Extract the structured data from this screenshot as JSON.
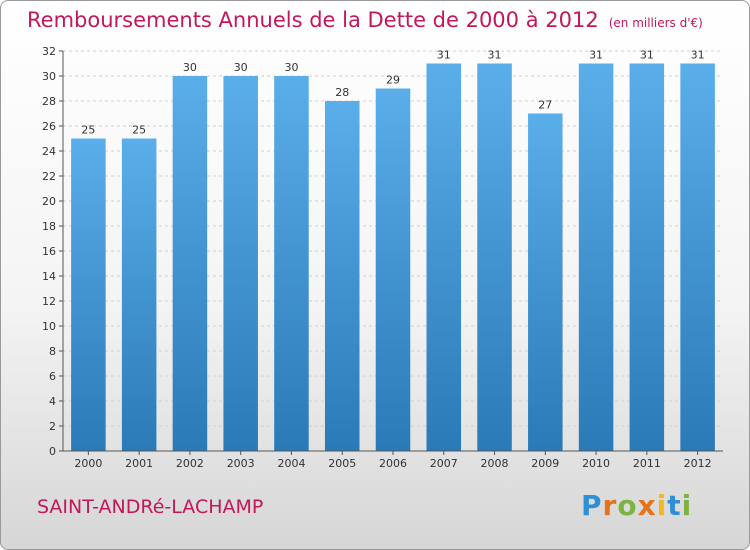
{
  "header": {
    "title": "Remboursements Annuels de la Dette de 2000 à 2012",
    "unit": "(en milliers d'€)"
  },
  "footer": {
    "commune": "SAINT-ANDRé-LACHAMP",
    "logo_letters": [
      "P",
      "r",
      "o",
      "x",
      "i",
      "t",
      "i"
    ]
  },
  "colors": {
    "title": "#c2185b",
    "bar_top": "#5aaee9",
    "bar_bottom": "#2a7ab8",
    "axis": "#555555",
    "grid": "#d0d0d0"
  },
  "chart_data": {
    "type": "bar",
    "categories": [
      "2000",
      "2001",
      "2002",
      "2003",
      "2004",
      "2005",
      "2006",
      "2007",
      "2008",
      "2009",
      "2010",
      "2011",
      "2012"
    ],
    "values": [
      25,
      25,
      30,
      30,
      30,
      28,
      29,
      31,
      31,
      27,
      31,
      31,
      31
    ],
    "ylim": [
      0,
      32
    ],
    "yticks": [
      0,
      2,
      4,
      6,
      8,
      10,
      12,
      14,
      16,
      18,
      20,
      22,
      24,
      26,
      28,
      30,
      32
    ],
    "grid": true,
    "data_labels": true
  }
}
